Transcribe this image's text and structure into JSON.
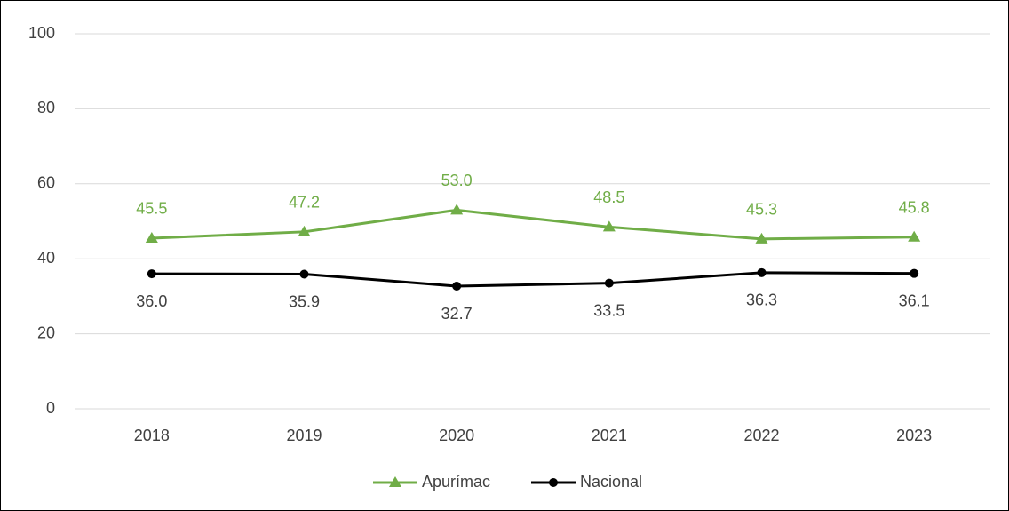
{
  "chart_data": {
    "type": "line",
    "categories": [
      "2018",
      "2019",
      "2020",
      "2021",
      "2022",
      "2023"
    ],
    "series": [
      {
        "name": "Apurímac",
        "color": "#70ad47",
        "marker": "triangle",
        "values": [
          45.5,
          47.2,
          53.0,
          48.5,
          45.3,
          45.8
        ],
        "value_labels": [
          "45.5",
          "47.2",
          "53.0",
          "48.5",
          "45.3",
          "45.8"
        ]
      },
      {
        "name": "Nacional",
        "color": "#000000",
        "marker": "circle",
        "values": [
          36.0,
          35.9,
          32.7,
          33.5,
          36.3,
          36.1
        ],
        "value_labels": [
          "36.0",
          "35.9",
          "32.7",
          "33.5",
          "36.3",
          "36.1"
        ]
      }
    ],
    "ylim": [
      0,
      100
    ],
    "yticks": [
      0,
      20,
      40,
      60,
      80,
      100
    ],
    "grid": true,
    "legend": "bottom"
  }
}
